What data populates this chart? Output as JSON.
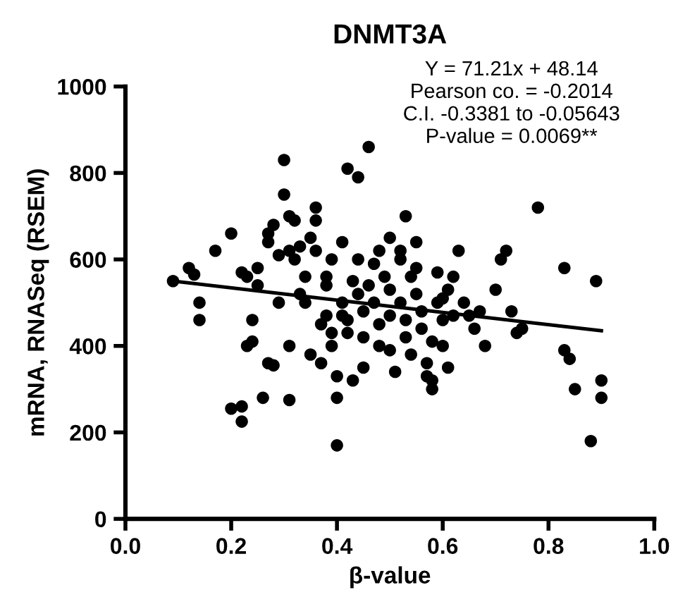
{
  "chart_data": {
    "type": "scatter",
    "title": "DNMT3A",
    "xlabel": "β-value",
    "ylabel": "mRNA, RNASeq (RSEM)",
    "annotations": [
      "Y = 71.21x + 48.14",
      "Pearson co. = -0.2014",
      "C.I. -0.3381 to -0.05643",
      "P-value = 0.0069**"
    ],
    "xlim": [
      0,
      1.0
    ],
    "ylim": [
      0,
      1000
    ],
    "xticks": [
      {
        "value": 0,
        "label": "0.0"
      },
      {
        "value": 0.2,
        "label": "0.2"
      },
      {
        "value": 0.4,
        "label": "0.4"
      },
      {
        "value": 0.6,
        "label": "0.6"
      },
      {
        "value": 0.8,
        "label": "0.8"
      },
      {
        "value": 1.0,
        "label": "1.0"
      }
    ],
    "yticks": [
      0,
      200,
      400,
      600,
      800,
      1000
    ],
    "grid": false,
    "series": [
      {
        "color": "#000000",
        "marker": "circle",
        "x": [
          0.09,
          0.12,
          0.13,
          0.14,
          0.14,
          0.17,
          0.2,
          0.2,
          0.22,
          0.22,
          0.23,
          0.24,
          0.24,
          0.22,
          0.23,
          0.25,
          0.25,
          0.27,
          0.28,
          0.26,
          0.27,
          0.27,
          0.28,
          0.29,
          0.3,
          0.3,
          0.31,
          0.32,
          0.31,
          0.32,
          0.33,
          0.31,
          0.31,
          0.33,
          0.34,
          0.35,
          0.36,
          0.36,
          0.36,
          0.35,
          0.37,
          0.38,
          0.38,
          0.38,
          0.39,
          0.39,
          0.4,
          0.4,
          0.4,
          0.41,
          0.41,
          0.42,
          0.42,
          0.43,
          0.43,
          0.44,
          0.44,
          0.45,
          0.45,
          0.46,
          0.47,
          0.47,
          0.48,
          0.48,
          0.49,
          0.5,
          0.5,
          0.5,
          0.51,
          0.52,
          0.52,
          0.52,
          0.53,
          0.53,
          0.54,
          0.54,
          0.55,
          0.55,
          0.56,
          0.56,
          0.57,
          0.57,
          0.58,
          0.58,
          0.58,
          0.59,
          0.59,
          0.6,
          0.6,
          0.61,
          0.61,
          0.62,
          0.63,
          0.64,
          0.65,
          0.66,
          0.67,
          0.68,
          0.7,
          0.71,
          0.72,
          0.73,
          0.74,
          0.75,
          0.78,
          0.83,
          0.83,
          0.84,
          0.85,
          0.88,
          0.89,
          0.9,
          0.9,
          0.6,
          0.46,
          0.44,
          0.48,
          0.39,
          0.34,
          0.29,
          0.37,
          0.45,
          0.55,
          0.62,
          0.5,
          0.53,
          0.41,
          0.42
        ],
        "values": [
          550,
          580,
          565,
          500,
          460,
          620,
          660,
          255,
          225,
          260,
          400,
          410,
          460,
          570,
          560,
          580,
          540,
          360,
          355,
          280,
          640,
          660,
          680,
          610,
          830,
          750,
          700,
          690,
          620,
          600,
          630,
          400,
          275,
          520,
          500,
          650,
          720,
          690,
          620,
          380,
          360,
          560,
          540,
          470,
          430,
          400,
          330,
          280,
          170,
          640,
          500,
          810,
          460,
          320,
          550,
          790,
          520,
          480,
          420,
          860,
          590,
          500,
          450,
          400,
          560,
          530,
          470,
          390,
          340,
          620,
          600,
          500,
          460,
          420,
          560,
          380,
          640,
          520,
          480,
          440,
          360,
          330,
          410,
          320,
          300,
          570,
          500,
          460,
          400,
          530,
          350,
          560,
          620,
          500,
          470,
          440,
          480,
          400,
          530,
          600,
          620,
          480,
          430,
          440,
          720,
          580,
          390,
          370,
          300,
          180,
          550,
          320,
          280,
          510,
          540,
          600,
          620,
          600,
          560,
          500,
          450,
          350,
          580,
          470,
          650,
          700,
          470,
          430
        ]
      },
      {
        "type": "line",
        "color": "#000000",
        "x": [
          0.09,
          0.9
        ],
        "values": [
          550,
          435
        ]
      }
    ]
  }
}
